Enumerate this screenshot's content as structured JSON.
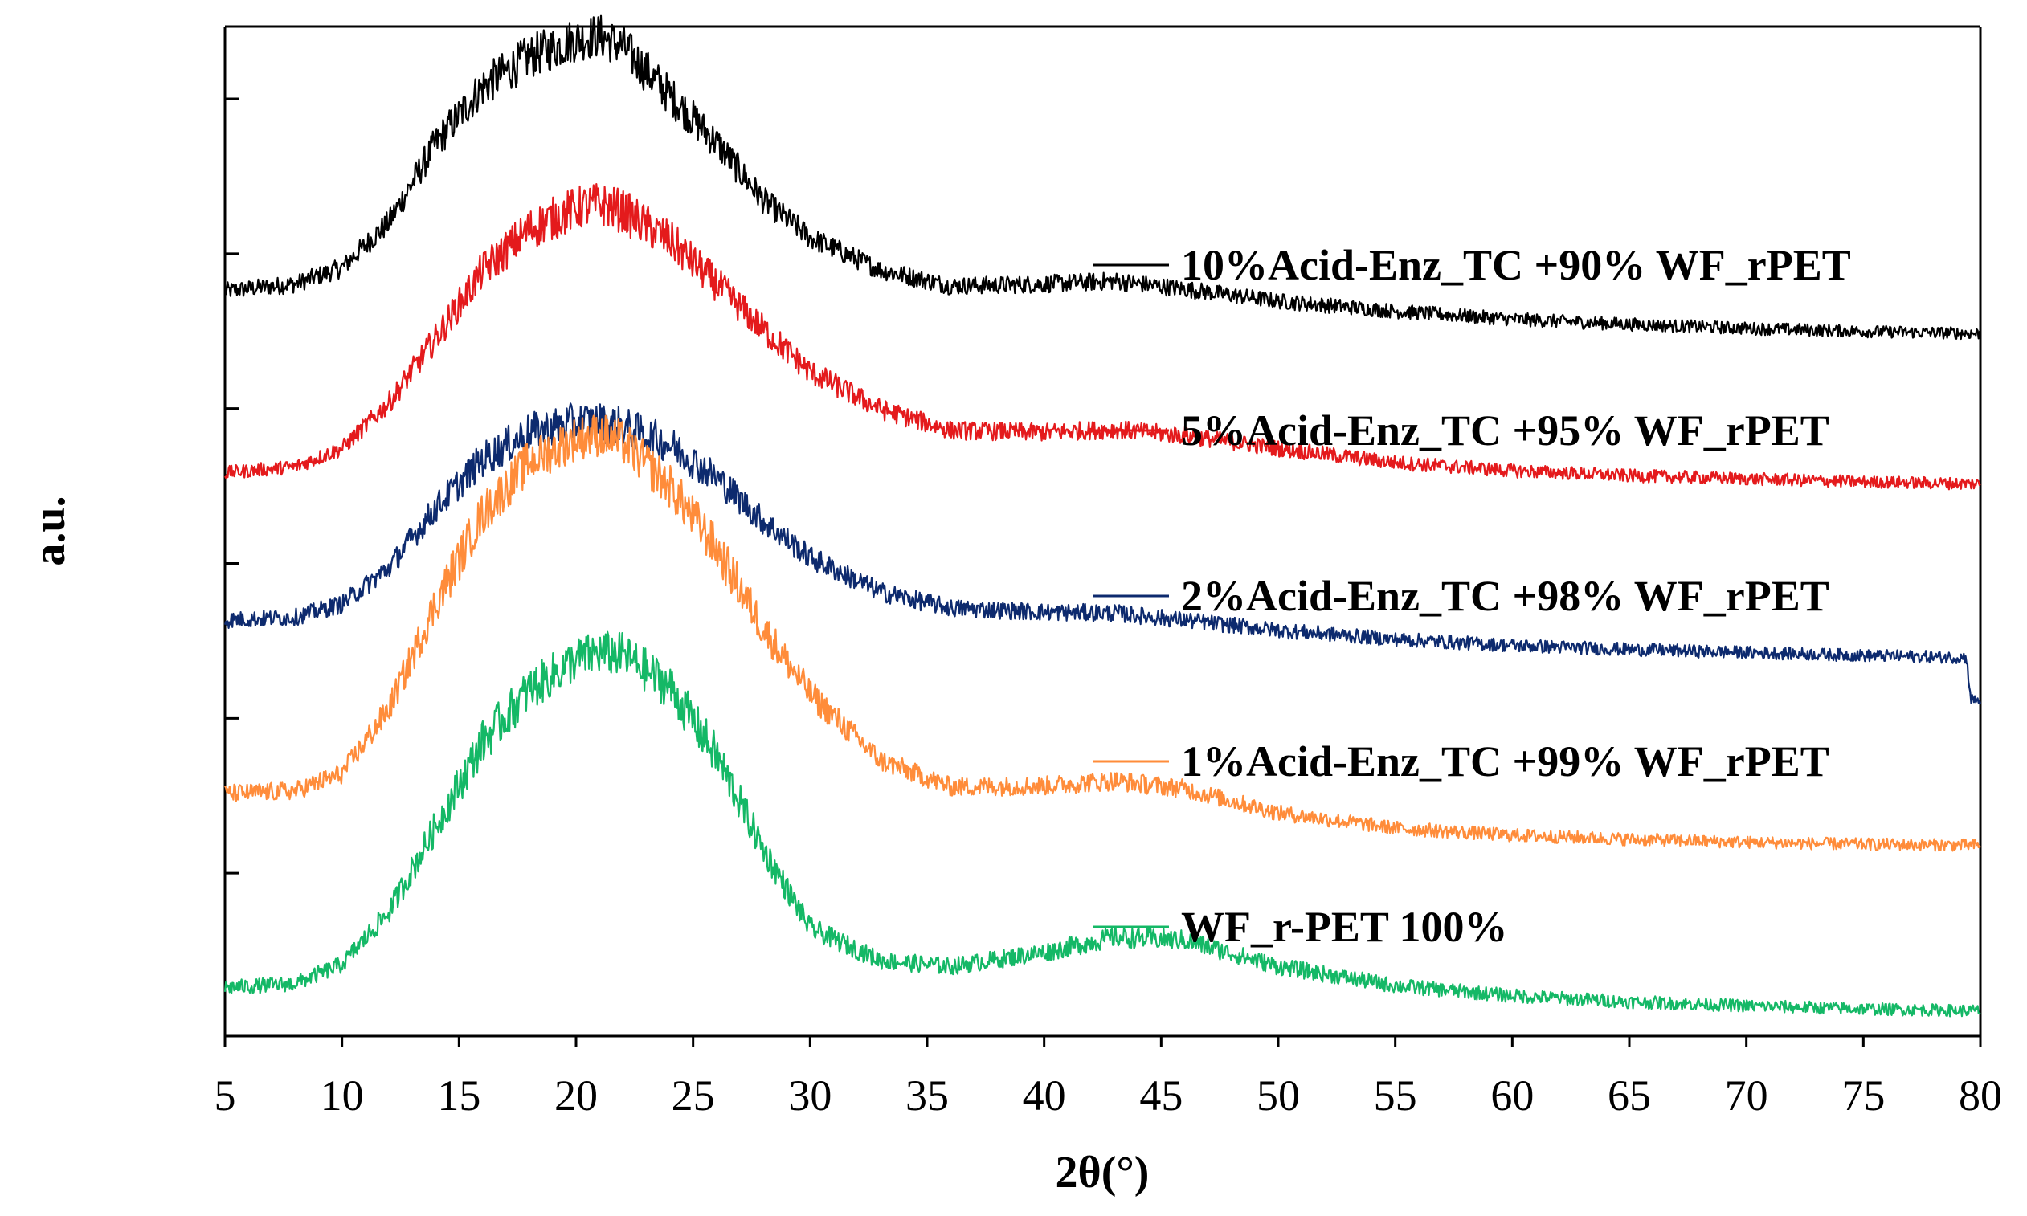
{
  "chart_data": {
    "type": "line",
    "title": "",
    "xlabel": "2θ(°)",
    "ylabel": "a.u.",
    "xlim": [
      5,
      80
    ],
    "ylim": [
      0,
      1
    ],
    "xticks": [
      5,
      10,
      15,
      20,
      25,
      30,
      35,
      40,
      45,
      50,
      55,
      60,
      65,
      70,
      75,
      80
    ],
    "yticks_labeled": false,
    "grid": false,
    "legend_placement": "right, stacked beside each curve",
    "series": [
      {
        "name": "10%Acid-Enz_TC +90% WF_rPET",
        "color": "#000000",
        "x": [
          5,
          8,
          10,
          12,
          14,
          16,
          18,
          20,
          21,
          22,
          24,
          26,
          28,
          30,
          33,
          36,
          40,
          43,
          46,
          50,
          55,
          60,
          65,
          70,
          75,
          80
        ],
        "y": [
          0.738,
          0.745,
          0.761,
          0.806,
          0.884,
          0.94,
          0.97,
          0.987,
          0.991,
          0.98,
          0.932,
          0.885,
          0.828,
          0.791,
          0.759,
          0.743,
          0.745,
          0.748,
          0.74,
          0.728,
          0.718,
          0.71,
          0.705,
          0.701,
          0.698,
          0.696
        ]
      },
      {
        "name": "5%Acid-Enz_TC +95% WF_rPET",
        "color": "#e41a1c",
        "x": [
          5,
          8,
          10,
          12,
          14,
          16,
          18,
          20,
          21,
          22,
          24,
          26,
          28,
          30,
          33,
          36,
          40,
          43,
          46,
          50,
          55,
          60,
          65,
          70,
          75,
          80
        ],
        "y": [
          0.558,
          0.564,
          0.582,
          0.627,
          0.691,
          0.758,
          0.799,
          0.82,
          0.824,
          0.817,
          0.788,
          0.745,
          0.7,
          0.658,
          0.621,
          0.6,
          0.598,
          0.601,
          0.595,
          0.582,
          0.568,
          0.56,
          0.555,
          0.552,
          0.549,
          0.547
        ]
      },
      {
        "name": "2%Acid-Enz_TC +98% WF_rPET",
        "color": "#0d2a6e",
        "x": [
          5,
          8,
          10,
          12,
          14,
          16,
          18,
          20,
          21,
          22,
          24,
          26,
          28,
          30,
          33,
          36,
          40,
          43,
          46,
          50,
          55,
          60,
          65,
          70,
          75,
          79.4,
          79.6,
          80
        ],
        "y": [
          0.412,
          0.415,
          0.428,
          0.464,
          0.523,
          0.571,
          0.598,
          0.608,
          0.608,
          0.604,
          0.586,
          0.553,
          0.51,
          0.474,
          0.44,
          0.424,
          0.42,
          0.419,
          0.412,
          0.402,
          0.393,
          0.387,
          0.383,
          0.38,
          0.377,
          0.375,
          0.333,
          0.333
        ]
      },
      {
        "name": "1%Acid-Enz_TC +99% WF_rPET",
        "color": "#ff8c3a",
        "x": [
          5,
          8,
          10,
          12,
          14,
          16,
          18,
          20,
          21,
          22,
          24,
          26,
          28,
          30,
          33,
          36,
          40,
          43,
          46,
          50,
          55,
          60,
          65,
          70,
          75,
          80
        ],
        "y": [
          0.24,
          0.243,
          0.26,
          0.324,
          0.428,
          0.517,
          0.569,
          0.592,
          0.596,
          0.588,
          0.545,
          0.483,
          0.404,
          0.339,
          0.273,
          0.247,
          0.248,
          0.253,
          0.245,
          0.221,
          0.206,
          0.199,
          0.195,
          0.192,
          0.19,
          0.189
        ]
      },
      {
        "name": "WF_r-PET 100%",
        "color": "#14b866",
        "x": [
          5,
          8,
          10,
          12,
          14,
          16,
          18,
          20,
          21,
          22,
          24,
          26,
          28,
          30,
          33,
          36,
          40,
          43,
          46,
          50,
          55,
          60,
          65,
          70,
          75,
          80
        ],
        "y": [
          0.048,
          0.052,
          0.071,
          0.123,
          0.207,
          0.291,
          0.343,
          0.373,
          0.38,
          0.378,
          0.346,
          0.278,
          0.185,
          0.107,
          0.075,
          0.069,
          0.083,
          0.098,
          0.095,
          0.069,
          0.05,
          0.04,
          0.034,
          0.03,
          0.027,
          0.025
        ]
      }
    ]
  }
}
